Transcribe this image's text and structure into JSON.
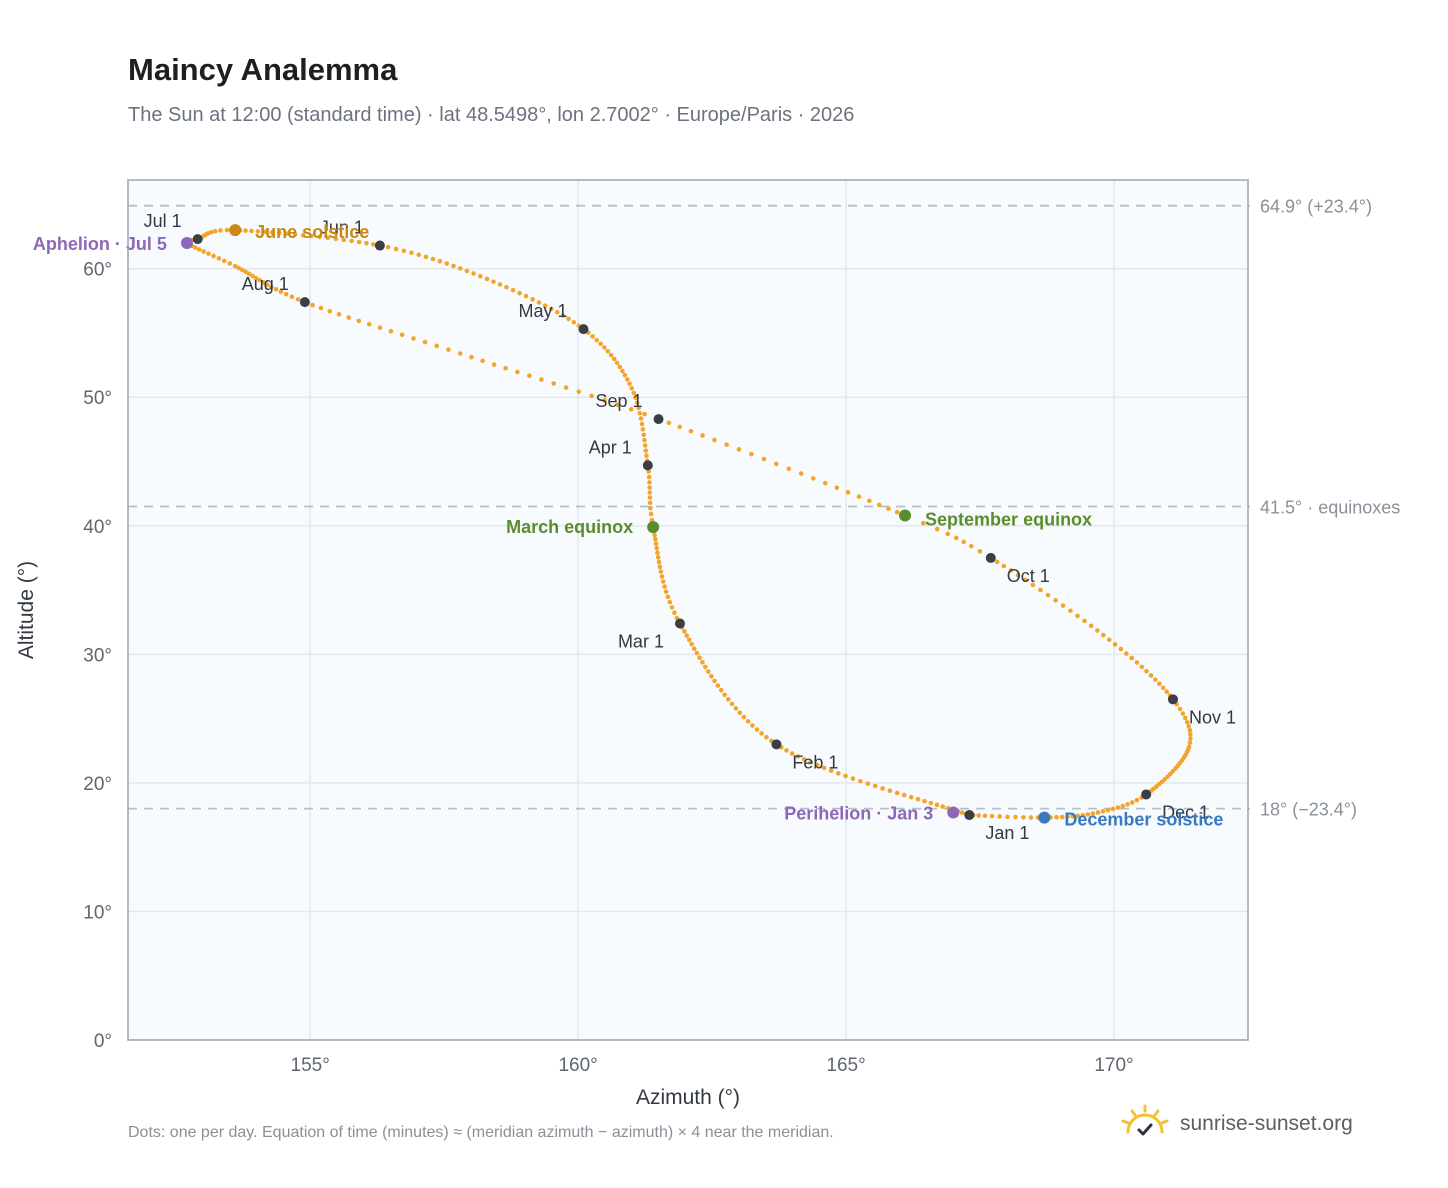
{
  "header": {
    "title": "Maincy Analemma",
    "subtitle": "The Sun at 12:00 (standard time) · lat 48.5498°, lon 2.7002° · Europe/Paris · 2026"
  },
  "footer": {
    "note": "Dots: one per day. Equation of time (minutes) ≈ (meridian azimuth − azimuth) × 4 near the meridian.",
    "brand": "sunrise-sunset.org"
  },
  "colors": {
    "path": "#f2a52a",
    "month_marker": "#3a3f47",
    "equinox": "#5b8c2e",
    "june_solstice": "#c88a12",
    "december_solstice": "#3a78c0",
    "apsis": "#8e67b8",
    "plot_bg": "#f8fbfd",
    "grid": "#e2e8ef",
    "ref_line": "#b5c0cc",
    "axis_text": "#5f6670",
    "brand_sun": "#f2c230"
  },
  "chart_data": {
    "type": "scatter",
    "xlabel": "Azimuth (°)",
    "ylabel": "Altitude (°)",
    "xlim": [
      151.6,
      172.5
    ],
    "ylim": [
      0,
      66.9
    ],
    "x_ticks": [
      155,
      160,
      165,
      170
    ],
    "x_tick_labels": [
      "155°",
      "160°",
      "165°",
      "170°"
    ],
    "y_ticks": [
      0,
      10,
      20,
      30,
      40,
      50,
      60
    ],
    "y_tick_labels": [
      "0°",
      "10°",
      "20°",
      "30°",
      "40°",
      "50°",
      "60°"
    ],
    "grid": true,
    "reference_lines": [
      {
        "y": 64.9,
        "label": "64.9° (+23.4°)"
      },
      {
        "y": 41.5,
        "label": "41.5° · equinoxes"
      },
      {
        "y": 18.0,
        "label": "18° (−23.4°)"
      }
    ],
    "series": [
      {
        "name": "Dots: one per day",
        "path_nodes": [
          {
            "day": 0,
            "az": 167.3,
            "alt": 17.5
          },
          {
            "day": 31,
            "az": 163.7,
            "alt": 23.0
          },
          {
            "day": 59,
            "az": 161.9,
            "alt": 32.4
          },
          {
            "day": 79,
            "az": 161.4,
            "alt": 39.9
          },
          {
            "day": 90,
            "az": 161.3,
            "alt": 44.7
          },
          {
            "day": 105,
            "az": 161.0,
            "alt": 50.7
          },
          {
            "day": 120,
            "az": 160.1,
            "alt": 55.3
          },
          {
            "day": 136,
            "az": 158.3,
            "alt": 59.2
          },
          {
            "day": 151,
            "az": 156.3,
            "alt": 61.8
          },
          {
            "day": 171,
            "az": 153.6,
            "alt": 63.0
          },
          {
            "day": 181,
            "az": 152.9,
            "alt": 62.3
          },
          {
            "day": 185,
            "az": 152.7,
            "alt": 62.0
          },
          {
            "day": 196,
            "az": 153.6,
            "alt": 60.2
          },
          {
            "day": 212,
            "az": 154.9,
            "alt": 57.4
          },
          {
            "day": 227,
            "az": 157.8,
            "alt": 53.4
          },
          {
            "day": 243,
            "az": 161.5,
            "alt": 48.3
          },
          {
            "day": 265,
            "az": 166.1,
            "alt": 40.8
          },
          {
            "day": 273,
            "az": 167.7,
            "alt": 37.5
          },
          {
            "day": 289,
            "az": 169.8,
            "alt": 31.5
          },
          {
            "day": 304,
            "az": 171.1,
            "alt": 26.5
          },
          {
            "day": 315,
            "az": 171.4,
            "alt": 22.8
          },
          {
            "day": 334,
            "az": 170.6,
            "alt": 19.1
          },
          {
            "day": 344,
            "az": 169.7,
            "alt": 17.7
          },
          {
            "day": 354,
            "az": 168.7,
            "alt": 17.3
          },
          {
            "day": 365,
            "az": 167.3,
            "alt": 17.5
          }
        ]
      }
    ],
    "month_markers": [
      {
        "label": "Jan 1",
        "az": 167.3,
        "alt": 17.5,
        "anchor": "start",
        "dx": 16,
        "dy": 24
      },
      {
        "label": "Feb 1",
        "az": 163.7,
        "alt": 23.0,
        "anchor": "start",
        "dx": 16,
        "dy": 24
      },
      {
        "label": "Mar 1",
        "az": 161.9,
        "alt": 32.4,
        "anchor": "end",
        "dx": -16,
        "dy": 24
      },
      {
        "label": "Apr 1",
        "az": 161.3,
        "alt": 44.7,
        "anchor": "end",
        "dx": -16,
        "dy": -12
      },
      {
        "label": "May 1",
        "az": 160.1,
        "alt": 55.3,
        "anchor": "end",
        "dx": -16,
        "dy": -12
      },
      {
        "label": "Jun 1",
        "az": 156.3,
        "alt": 61.8,
        "anchor": "end",
        "dx": -16,
        "dy": -12
      },
      {
        "label": "Jul 1",
        "az": 152.9,
        "alt": 62.3,
        "anchor": "end",
        "dx": -16,
        "dy": -12
      },
      {
        "label": "Aug 1",
        "az": 154.9,
        "alt": 57.4,
        "anchor": "end",
        "dx": -16,
        "dy": -12
      },
      {
        "label": "Sep 1",
        "az": 161.5,
        "alt": 48.3,
        "anchor": "end",
        "dx": -16,
        "dy": -12
      },
      {
        "label": "Oct 1",
        "az": 167.7,
        "alt": 37.5,
        "anchor": "start",
        "dx": 16,
        "dy": 24
      },
      {
        "label": "Nov 1",
        "az": 171.1,
        "alt": 26.5,
        "anchor": "start",
        "dx": 16,
        "dy": 24
      },
      {
        "label": "Dec 1",
        "az": 170.6,
        "alt": 19.1,
        "anchor": "start",
        "dx": 16,
        "dy": 24
      }
    ],
    "events": [
      {
        "label": "March equinox",
        "az": 161.4,
        "alt": 39.9,
        "color_key": "equinox",
        "anchor": "end",
        "dx": -20,
        "dy": 6
      },
      {
        "label": "September equinox",
        "az": 166.1,
        "alt": 40.8,
        "color_key": "equinox",
        "anchor": "start",
        "dx": 20,
        "dy": 10
      },
      {
        "label": "June solstice",
        "az": 153.6,
        "alt": 63.0,
        "color_key": "june_solstice",
        "anchor": "start",
        "dx": 20,
        "dy": 8
      },
      {
        "label": "December solstice",
        "az": 168.7,
        "alt": 17.3,
        "color_key": "december_solstice",
        "anchor": "start",
        "dx": 20,
        "dy": 8
      },
      {
        "label": "Aphelion · Jul 5",
        "az": 152.7,
        "alt": 62.0,
        "color_key": "apsis",
        "anchor": "end",
        "dx": -20,
        "dy": 7
      },
      {
        "label": "Perihelion · Jan 3",
        "az": 167.0,
        "alt": 17.7,
        "color_key": "apsis",
        "anchor": "end",
        "dx": -20,
        "dy": 7
      }
    ]
  }
}
